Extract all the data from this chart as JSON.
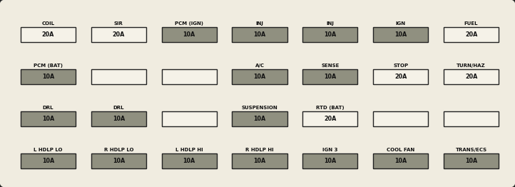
{
  "bg_outer": "#c8c0a8",
  "bg_inner": "#f0ece0",
  "border_color": "#222222",
  "dark_fuse_color": "#909080",
  "light_fuse_color": "#f5f2e8",
  "text_color": "#111111",
  "rows": [
    {
      "fuses": [
        {
          "label": "COIL",
          "value": "20A",
          "dark": false
        },
        {
          "label": "SIR",
          "value": "20A",
          "dark": false
        },
        {
          "label": "PCM (IGN)",
          "value": "10A",
          "dark": true
        },
        {
          "label": "INJ",
          "value": "10A",
          "dark": true
        },
        {
          "label": "INJ",
          "value": "10A",
          "dark": true
        },
        {
          "label": "IGN",
          "value": "10A",
          "dark": true
        },
        {
          "label": "FUEL",
          "value": "20A",
          "dark": false
        }
      ]
    },
    {
      "fuses": [
        {
          "label": "PCM (BAT)",
          "value": "10A",
          "dark": true
        },
        {
          "label": "",
          "value": "",
          "dark": false
        },
        {
          "label": "",
          "value": "",
          "dark": false
        },
        {
          "label": "A/C",
          "value": "10A",
          "dark": true
        },
        {
          "label": "SENSE",
          "value": "10A",
          "dark": true
        },
        {
          "label": "STOP",
          "value": "20A",
          "dark": false
        },
        {
          "label": "TURN/HAZ",
          "value": "20A",
          "dark": false
        }
      ]
    },
    {
      "fuses": [
        {
          "label": "DRL",
          "value": "10A",
          "dark": true
        },
        {
          "label": "DRL",
          "value": "10A",
          "dark": true
        },
        {
          "label": "",
          "value": "",
          "dark": false
        },
        {
          "label": "SUSPENSION",
          "value": "10A",
          "dark": true
        },
        {
          "label": "RTD (BAT)",
          "value": "20A",
          "dark": false
        },
        {
          "label": "",
          "value": "",
          "dark": false
        },
        {
          "label": "",
          "value": "",
          "dark": false
        }
      ]
    },
    {
      "fuses": [
        {
          "label": "L HDLP LO",
          "value": "10A",
          "dark": true
        },
        {
          "label": "R HDLP LO",
          "value": "10A",
          "dark": true
        },
        {
          "label": "L HDLP HI",
          "value": "10A",
          "dark": true
        },
        {
          "label": "R HDLP HI",
          "value": "10A",
          "dark": true
        },
        {
          "label": "IGN 3",
          "value": "10A",
          "dark": true
        },
        {
          "label": "COOL FAN",
          "value": "10A",
          "dark": true
        },
        {
          "label": "TRANS/ECS",
          "value": "10A",
          "dark": true
        }
      ]
    }
  ],
  "figsize": [
    7.22,
    2.62
  ],
  "dpi": 100
}
